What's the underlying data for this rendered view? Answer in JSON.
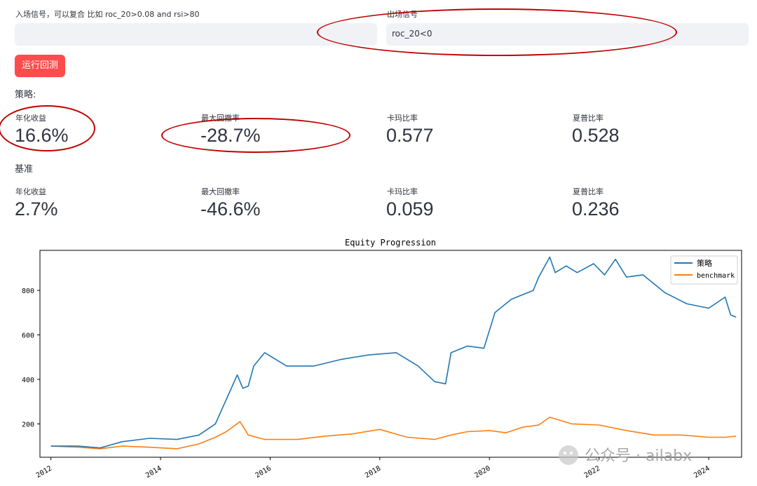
{
  "entry": {
    "label": "入场信号，可以复合 比如 roc_20>0.08 and rsi>80",
    "value": ""
  },
  "exit": {
    "label": "出场信号",
    "value": "roc_20<0"
  },
  "run_button": "运行回测",
  "strategy": {
    "title": "策略:",
    "metrics": [
      {
        "label": "年化收益",
        "value": "16.6%"
      },
      {
        "label": "最大回撤率",
        "value": "-28.7%"
      },
      {
        "label": "卡玛比率",
        "value": "0.577"
      },
      {
        "label": "夏普比率",
        "value": "0.528"
      }
    ]
  },
  "benchmark": {
    "title": "基准",
    "metrics": [
      {
        "label": "年化收益",
        "value": "2.7%"
      },
      {
        "label": "最大回撤率",
        "value": "-46.6%"
      },
      {
        "label": "卡玛比率",
        "value": "0.059"
      },
      {
        "label": "夏普比率",
        "value": "0.236"
      }
    ]
  },
  "watermark": "公众号 · ailabx",
  "chart_data": {
    "type": "line",
    "title": "Equity Progression",
    "xlabel": "",
    "ylabel": "",
    "xlim": [
      2011.8,
      2024.6
    ],
    "ylim": [
      50,
      980
    ],
    "xticks": [
      "2012",
      "2014",
      "2016",
      "2018",
      "2020",
      "2022",
      "2024"
    ],
    "yticks": [
      "200",
      "400",
      "600",
      "800"
    ],
    "legend_position": "top-right",
    "colors": {
      "策略": "#1f77b4",
      "benchmark": "#ff7f0e"
    },
    "series": [
      {
        "name": "策略",
        "x": [
          2012.0,
          2012.5,
          2012.9,
          2013.3,
          2013.8,
          2014.3,
          2014.7,
          2015.0,
          2015.2,
          2015.4,
          2015.5,
          2015.6,
          2015.7,
          2015.9,
          2016.3,
          2016.8,
          2017.3,
          2017.8,
          2018.3,
          2018.7,
          2019.0,
          2019.2,
          2019.3,
          2019.6,
          2019.9,
          2020.1,
          2020.4,
          2020.6,
          2020.8,
          2020.9,
          2021.1,
          2021.2,
          2021.4,
          2021.6,
          2021.9,
          2022.1,
          2022.3,
          2022.5,
          2022.8,
          2023.2,
          2023.6,
          2024.0,
          2024.3,
          2024.4,
          2024.5
        ],
        "y": [
          100,
          100,
          92,
          120,
          135,
          130,
          150,
          200,
          310,
          420,
          360,
          370,
          460,
          520,
          460,
          460,
          490,
          510,
          520,
          460,
          390,
          380,
          520,
          550,
          540,
          700,
          760,
          780,
          800,
          860,
          950,
          880,
          910,
          880,
          920,
          870,
          940,
          860,
          870,
          790,
          740,
          720,
          770,
          690,
          680
        ]
      },
      {
        "name": "benchmark",
        "x": [
          2012.0,
          2012.5,
          2012.9,
          2013.3,
          2013.8,
          2014.3,
          2014.7,
          2015.0,
          2015.2,
          2015.45,
          2015.6,
          2015.9,
          2016.5,
          2017.0,
          2017.5,
          2018.0,
          2018.5,
          2019.0,
          2019.3,
          2019.6,
          2020.0,
          2020.3,
          2020.6,
          2020.9,
          2021.1,
          2021.5,
          2022.0,
          2022.5,
          2023.0,
          2023.5,
          2024.0,
          2024.3,
          2024.5
        ],
        "y": [
          100,
          95,
          88,
          100,
          95,
          88,
          110,
          140,
          165,
          210,
          150,
          130,
          130,
          145,
          155,
          175,
          140,
          130,
          150,
          165,
          170,
          160,
          185,
          195,
          230,
          200,
          195,
          170,
          150,
          150,
          140,
          140,
          145
        ]
      }
    ]
  }
}
